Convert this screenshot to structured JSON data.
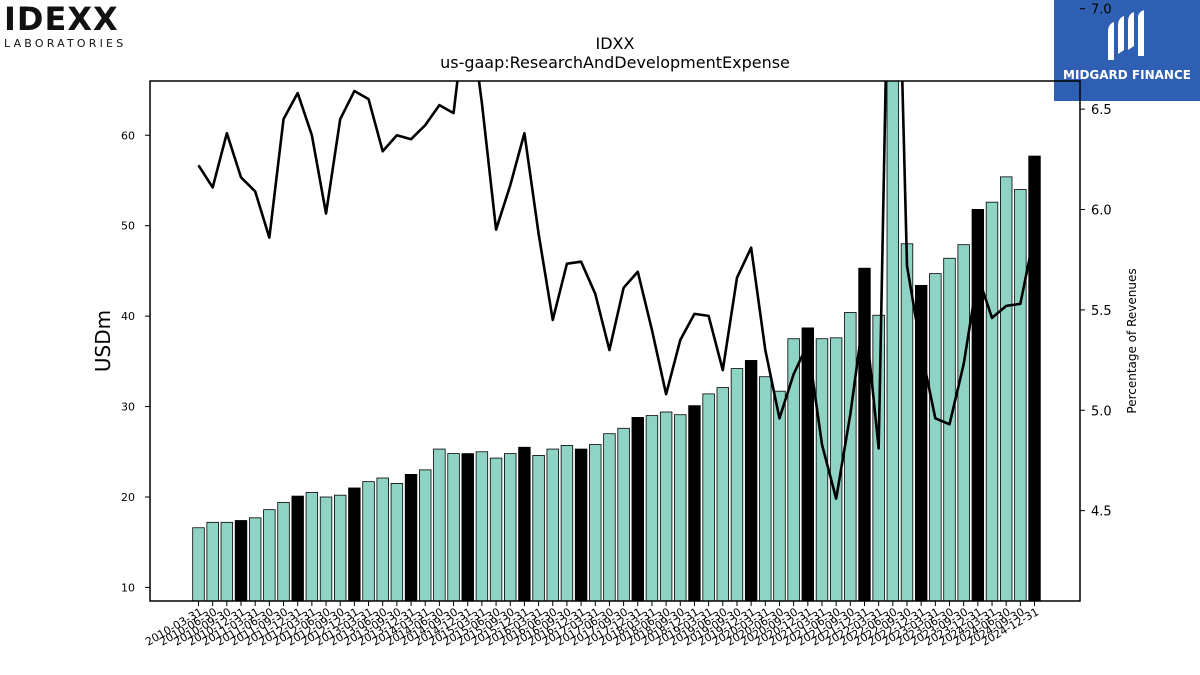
{
  "logos": {
    "left_brand": "IDEXX",
    "left_sub": "LABORATORIES",
    "right_name": "MIDGARD FINANCE"
  },
  "chart_data": {
    "type": "bar",
    "title": "IDXX",
    "subtitle": "us-gaap:ResearchAndDevelopmentExpense",
    "ylabel": "USDm",
    "y2label": "Percentage of Revenues",
    "ylim": [
      8.5,
      66
    ],
    "y2lim": [
      4.05,
      6.64
    ],
    "yticks": [
      10,
      20,
      30,
      40,
      50,
      60
    ],
    "y2ticks": [
      4.5,
      5.0,
      5.5,
      6.0,
      6.5,
      7.0
    ],
    "colors": {
      "quarter": "#8fd3c5",
      "fiscal_year": "#000000",
      "line": "#000000"
    },
    "categories": [
      "2010-03-31",
      "2010-06-30",
      "2010-09-30",
      "2010-12-31",
      "2011-03-31",
      "2011-06-30",
      "2011-09-30",
      "2011-12-31",
      "2012-03-31",
      "2012-06-30",
      "2012-09-30",
      "2012-12-31",
      "2013-03-31",
      "2013-06-30",
      "2013-09-30",
      "2013-12-31",
      "2014-03-31",
      "2014-06-30",
      "2014-09-30",
      "2014-12-31",
      "2015-03-31",
      "2015-06-30",
      "2015-09-30",
      "2015-12-31",
      "2016-03-31",
      "2016-06-30",
      "2016-09-30",
      "2016-12-31",
      "2017-03-31",
      "2017-06-30",
      "2017-09-30",
      "2017-12-31",
      "2018-03-31",
      "2018-06-30",
      "2018-09-30",
      "2018-12-31",
      "2019-03-31",
      "2019-06-30",
      "2019-09-30",
      "2019-12-31",
      "2020-03-31",
      "2020-06-30",
      "2020-09-30",
      "2020-12-31",
      "2021-03-31",
      "2021-06-30",
      "2021-09-30",
      "2021-12-31",
      "2022-03-31",
      "2022-06-30",
      "2022-09-30",
      "2022-12-31",
      "2023-03-31",
      "2023-06-30",
      "2023-09-30",
      "2023-12-31",
      "2024-03-31",
      "2024-06-30",
      "2024-09-30",
      "2024-12-31"
    ],
    "values": [
      16.6,
      17.2,
      17.2,
      17.4,
      17.7,
      18.6,
      19.4,
      20.1,
      20.5,
      20.0,
      20.2,
      21.0,
      21.7,
      22.1,
      21.5,
      22.5,
      23.0,
      25.3,
      24.8,
      24.8,
      25.0,
      24.3,
      24.8,
      25.5,
      24.6,
      25.3,
      25.7,
      25.3,
      25.8,
      27.0,
      27.6,
      28.8,
      29.0,
      29.4,
      29.1,
      30.1,
      31.4,
      32.1,
      34.2,
      35.1,
      33.3,
      31.7,
      37.5,
      38.7,
      37.5,
      37.6,
      40.4,
      45.3,
      40.1,
      70.0,
      48.0,
      43.4,
      44.7,
      46.4,
      47.9,
      51.8,
      52.6,
      55.4,
      54.0,
      57.7
    ],
    "fiscal_year_bar": [
      false,
      false,
      false,
      true,
      false,
      false,
      false,
      true,
      false,
      false,
      false,
      true,
      false,
      false,
      false,
      true,
      false,
      false,
      false,
      true,
      false,
      false,
      false,
      true,
      false,
      false,
      false,
      true,
      false,
      false,
      false,
      true,
      false,
      false,
      false,
      true,
      false,
      false,
      false,
      true,
      false,
      false,
      false,
      true,
      false,
      false,
      false,
      true,
      false,
      false,
      false,
      true,
      false,
      false,
      false,
      true,
      false,
      false,
      false,
      true
    ],
    "line_series": {
      "name": "Percentage of Revenues",
      "values": [
        6.22,
        6.11,
        6.38,
        6.16,
        6.09,
        5.86,
        6.45,
        6.58,
        6.37,
        5.98,
        6.45,
        6.59,
        6.55,
        6.29,
        6.37,
        6.35,
        6.42,
        6.52,
        6.48,
        7.07,
        6.53,
        5.9,
        6.12,
        6.38,
        5.88,
        5.45,
        5.73,
        5.74,
        5.58,
        5.3,
        5.61,
        5.69,
        5.4,
        5.08,
        5.35,
        5.48,
        5.47,
        5.2,
        5.66,
        5.81,
        5.3,
        4.96,
        5.18,
        5.33,
        4.83,
        4.56,
        4.98,
        5.5,
        4.81,
        8.5,
        5.72,
        5.3,
        4.96,
        4.93,
        5.23,
        5.67,
        5.46,
        5.52,
        5.53,
        5.88
      ]
    }
  }
}
